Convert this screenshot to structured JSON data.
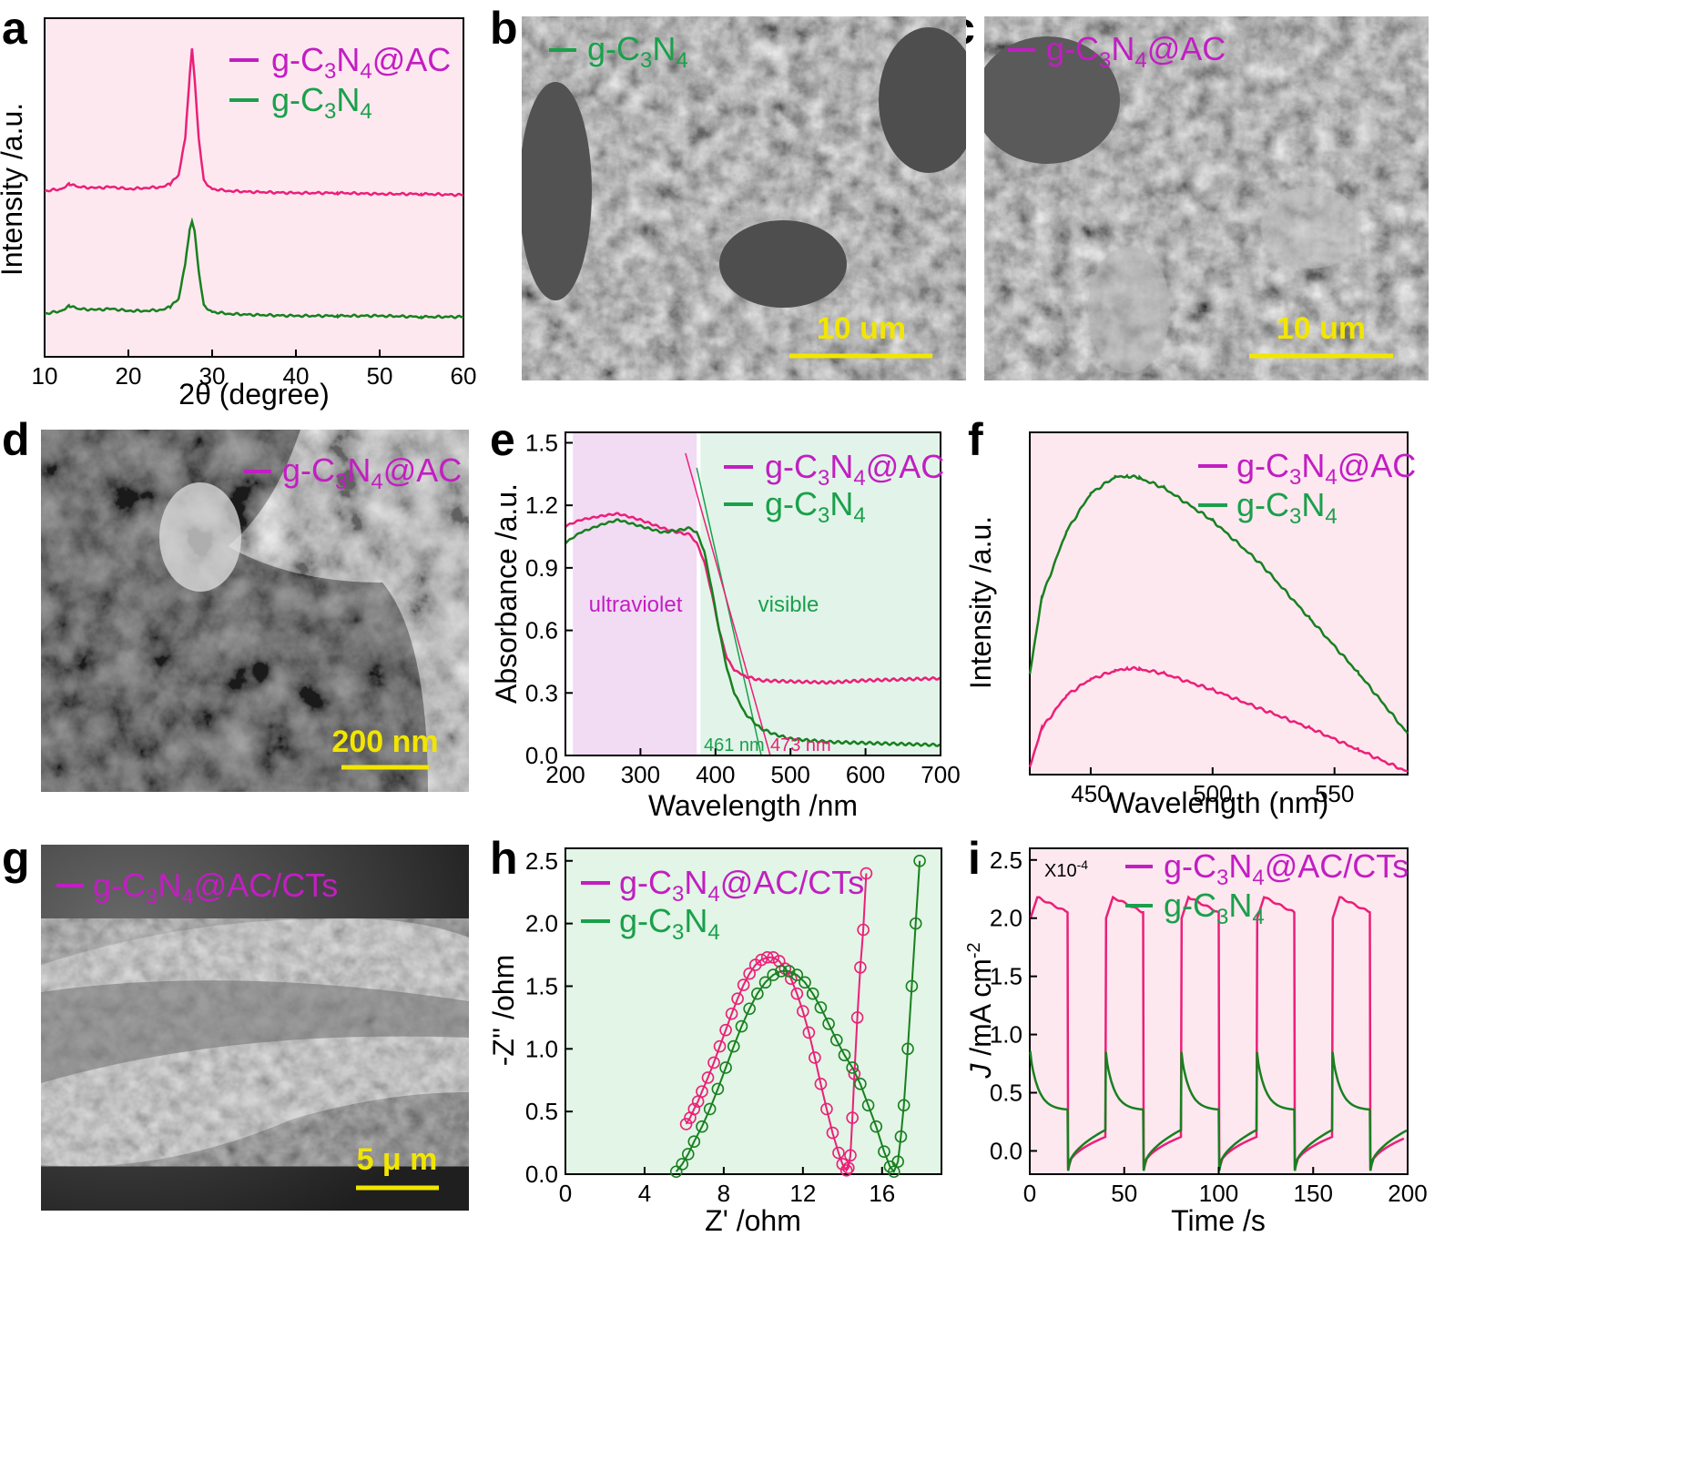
{
  "colors": {
    "pink": "#ec1f78",
    "magenta": "#c21ec2",
    "green": "#18801f",
    "bright_green": "#1aa04b",
    "scale_yellow": "#f2e600",
    "uv_region": "#f1dcf4",
    "vis_region": "#e2f4e9",
    "pink_bg": "#fde8f0",
    "green_bg": "#e2f5e6"
  },
  "labels": {
    "a": "a",
    "b": "b",
    "c": "c",
    "d": "d",
    "e": "e",
    "f": "f",
    "g": "g",
    "h": "h",
    "i": "i"
  },
  "images": {
    "b": {
      "legend": "g-C3N4",
      "scale": "10 um"
    },
    "c": {
      "legend": "g-C3N4@AC",
      "scale": "10 um"
    },
    "d": {
      "legend": "g-C3N4@AC",
      "scale": "200 nm"
    },
    "g": {
      "legend": "g-C3N4@AC/CTs",
      "scale": "5 μ m"
    }
  },
  "chart_data": [
    {
      "panel": "a",
      "type": "line",
      "xlabel": "2θ (degree)",
      "ylabel": "Intensity /a.u.",
      "xlim": [
        10,
        60
      ],
      "xticks": [
        10,
        20,
        30,
        40,
        50,
        60
      ],
      "y_ticks_shown": false,
      "peaks_2theta": [
        13.0,
        27.6
      ],
      "series": [
        {
          "name": "g-C3N4@AC",
          "color": "pink",
          "x": [
            10,
            12,
            13,
            14,
            16,
            18,
            20,
            22,
            24,
            25,
            26,
            26.8,
            27.3,
            27.6,
            27.9,
            28.4,
            29,
            30,
            32,
            35,
            40,
            45,
            50,
            55,
            60
          ],
          "y": [
            0.02,
            0.04,
            0.09,
            0.06,
            0.05,
            0.06,
            0.04,
            0.05,
            0.06,
            0.09,
            0.18,
            0.55,
            1.15,
            1.45,
            1.15,
            0.55,
            0.12,
            0.04,
            0.02,
            0.01,
            0.0,
            0.0,
            -0.01,
            -0.01,
            -0.02
          ]
        },
        {
          "name": "g-C3N4",
          "color": "green",
          "x": [
            10,
            12,
            13,
            14,
            16,
            18,
            20,
            22,
            24,
            25,
            26,
            26.8,
            27.3,
            27.6,
            27.9,
            28.4,
            29,
            30,
            32,
            35,
            40,
            45,
            50,
            55,
            60
          ],
          "y": [
            0.02,
            0.05,
            0.1,
            0.07,
            0.06,
            0.07,
            0.05,
            0.05,
            0.06,
            0.09,
            0.17,
            0.52,
            0.85,
            0.95,
            0.85,
            0.45,
            0.1,
            0.04,
            0.02,
            0.01,
            0.0,
            0.0,
            0.0,
            -0.01,
            -0.01
          ]
        }
      ]
    },
    {
      "panel": "e",
      "type": "line",
      "xlabel": "Wavelength /nm",
      "ylabel": "Absorbance /a.u.",
      "xlim": [
        200,
        700
      ],
      "ylim": [
        0,
        1.55
      ],
      "xticks": [
        200,
        300,
        400,
        500,
        600,
        700
      ],
      "yticks": [
        "0.0",
        "0.3",
        "0.6",
        "0.9",
        "1.2",
        "1.5"
      ],
      "regions": [
        {
          "label": "ultraviolet",
          "x": [
            210,
            375
          ],
          "color": "uv_region"
        },
        {
          "label": "visible",
          "x": [
            380,
            700
          ],
          "color": "vis_region"
        }
      ],
      "tangent_annotations": [
        {
          "label": "461 nm",
          "color": "bright_green",
          "x_intercept": 461,
          "x_top": 375,
          "y_top": 1.38
        },
        {
          "label": "473 nm",
          "color": "pink",
          "x_intercept": 473,
          "x_top": 360,
          "y_top": 1.45
        }
      ],
      "series": [
        {
          "name": "g-C3N4@AC",
          "color": "pink",
          "x": [
            200,
            220,
            250,
            270,
            300,
            330,
            350,
            365,
            375,
            385,
            395,
            405,
            415,
            425,
            440,
            460,
            500,
            550,
            600,
            650,
            700
          ],
          "y": [
            1.1,
            1.13,
            1.15,
            1.16,
            1.13,
            1.09,
            1.07,
            1.06,
            1.02,
            0.93,
            0.78,
            0.6,
            0.47,
            0.41,
            0.38,
            0.36,
            0.355,
            0.35,
            0.36,
            0.365,
            0.37
          ]
        },
        {
          "name": "g-C3N4",
          "color": "green",
          "x": [
            200,
            220,
            250,
            270,
            300,
            330,
            350,
            365,
            375,
            385,
            395,
            405,
            415,
            425,
            440,
            460,
            480,
            500,
            550,
            600,
            650,
            700
          ],
          "y": [
            1.02,
            1.07,
            1.11,
            1.13,
            1.1,
            1.07,
            1.08,
            1.09,
            1.07,
            0.98,
            0.8,
            0.6,
            0.42,
            0.3,
            0.2,
            0.13,
            0.1,
            0.08,
            0.065,
            0.06,
            0.055,
            0.05
          ]
        }
      ]
    },
    {
      "panel": "f",
      "type": "line",
      "xlabel": "Wavelength (nm)",
      "ylabel": "Intensity /a.u.",
      "xlim": [
        425,
        580
      ],
      "xticks": [
        450,
        500,
        550
      ],
      "y_ticks_shown": false,
      "series": [
        {
          "name": "g-C3N4@AC",
          "color": "pink",
          "x": [
            425,
            430,
            440,
            450,
            460,
            465,
            470,
            480,
            500,
            520,
            540,
            560,
            580
          ],
          "y": [
            0.33,
            0.4,
            0.46,
            0.49,
            0.505,
            0.51,
            0.508,
            0.5,
            0.47,
            0.435,
            0.4,
            0.36,
            0.32
          ]
        },
        {
          "name": "g-C3N4",
          "color": "green",
          "x": [
            425,
            430,
            440,
            450,
            460,
            465,
            470,
            480,
            500,
            520,
            540,
            560,
            580
          ],
          "y": [
            0.5,
            0.64,
            0.76,
            0.83,
            0.86,
            0.862,
            0.858,
            0.84,
            0.78,
            0.7,
            0.6,
            0.5,
            0.39
          ]
        }
      ]
    },
    {
      "panel": "h",
      "type": "scatter",
      "xlabel": "Z' /ohm",
      "ylabel": "-Z'' /ohm",
      "xlim": [
        0,
        19
      ],
      "ylim": [
        0,
        2.6
      ],
      "xticks": [
        0,
        4,
        8,
        12,
        16
      ],
      "yticks": [
        "0.0",
        "0.5",
        "1.0",
        "1.5",
        "2.0",
        "2.5"
      ],
      "series": [
        {
          "name": "g-C3N4@AC/CTs",
          "color": "pink",
          "x": [
            6.1,
            6.3,
            6.5,
            6.7,
            6.9,
            7.2,
            7.5,
            7.8,
            8.1,
            8.4,
            8.7,
            9.0,
            9.3,
            9.6,
            9.9,
            10.2,
            10.5,
            10.8,
            11.1,
            11.4,
            11.7,
            12.0,
            12.3,
            12.6,
            12.9,
            13.2,
            13.5,
            13.8,
            14.0,
            14.2,
            14.3,
            14.4,
            14.5,
            14.6,
            14.75,
            14.9,
            15.05,
            15.2
          ],
          "y": [
            0.4,
            0.45,
            0.52,
            0.58,
            0.66,
            0.77,
            0.89,
            1.02,
            1.15,
            1.28,
            1.4,
            1.51,
            1.6,
            1.67,
            1.71,
            1.73,
            1.73,
            1.7,
            1.64,
            1.56,
            1.44,
            1.3,
            1.13,
            0.93,
            0.72,
            0.52,
            0.33,
            0.17,
            0.08,
            0.03,
            0.05,
            0.15,
            0.45,
            0.8,
            1.25,
            1.65,
            1.95,
            2.4
          ]
        },
        {
          "name": "g-C3N4",
          "color": "green",
          "x": [
            5.6,
            5.9,
            6.2,
            6.5,
            6.9,
            7.3,
            7.7,
            8.1,
            8.5,
            8.9,
            9.3,
            9.7,
            10.1,
            10.5,
            10.9,
            11.3,
            11.7,
            12.1,
            12.5,
            12.9,
            13.3,
            13.7,
            14.1,
            14.5,
            14.9,
            15.3,
            15.7,
            16.1,
            16.4,
            16.6,
            16.8,
            16.95,
            17.1,
            17.3,
            17.5,
            17.7,
            17.9
          ],
          "y": [
            0.02,
            0.08,
            0.16,
            0.26,
            0.38,
            0.52,
            0.68,
            0.85,
            1.02,
            1.18,
            1.32,
            1.44,
            1.53,
            1.59,
            1.62,
            1.62,
            1.59,
            1.53,
            1.44,
            1.33,
            1.2,
            1.07,
            0.95,
            0.85,
            0.72,
            0.55,
            0.38,
            0.18,
            0.06,
            0.02,
            0.1,
            0.3,
            0.55,
            1.0,
            1.5,
            2.0,
            2.5
          ]
        }
      ]
    },
    {
      "panel": "i",
      "type": "line",
      "xlabel": "Time /s",
      "ylabel": "J /mA cm-2",
      "multiplier": "X10-4",
      "xlim": [
        0,
        200
      ],
      "ylim": [
        -0.2,
        2.6
      ],
      "xticks": [
        0,
        50,
        100,
        150,
        200
      ],
      "yticks": [
        "0.0",
        "0.5",
        "1.0",
        "1.5",
        "2.0",
        "2.5"
      ],
      "light_on_off_s": [
        [
          0,
          20
        ],
        [
          40,
          60
        ],
        [
          80,
          100
        ],
        [
          120,
          140
        ],
        [
          160,
          180
        ]
      ],
      "series": [
        {
          "name": "g-C3N4@AC/CTs",
          "color": "pink",
          "on_start": 2.0,
          "on_peak": 2.18,
          "on_end": 2.05,
          "off_dip": -0.15,
          "off_end": 0.12
        },
        {
          "name": "g-C3N4",
          "color": "green",
          "on_spike": 0.85,
          "on_end": 0.35,
          "off_dip": -0.17,
          "off_end": 0.18
        }
      ]
    }
  ]
}
